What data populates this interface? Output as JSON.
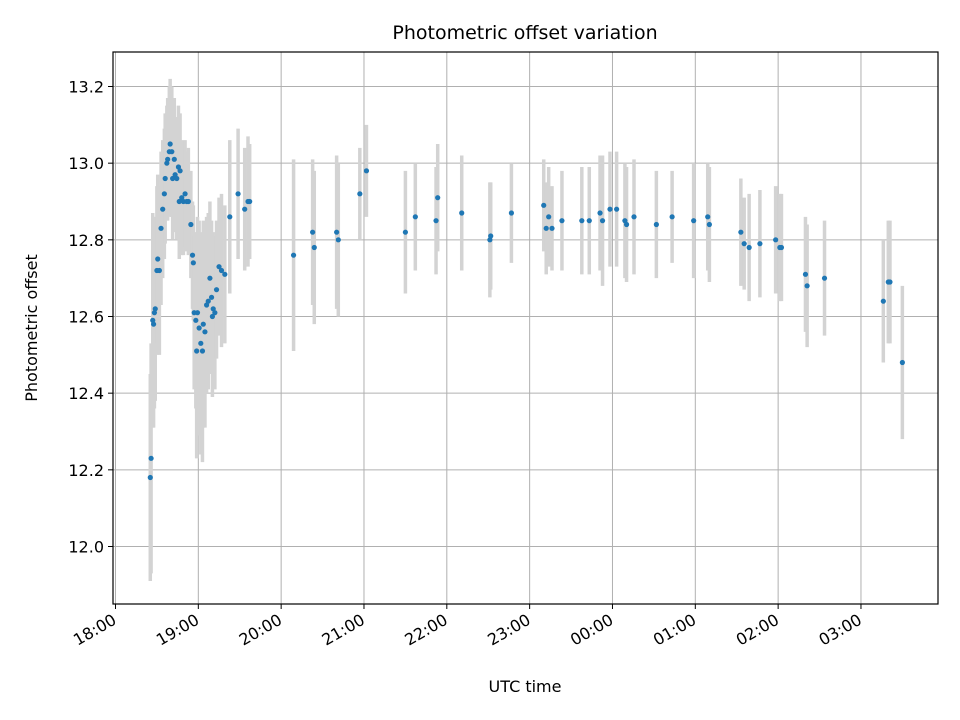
{
  "chart_data": {
    "type": "scatter",
    "title": "Photometric offset variation",
    "xlabel": "UTC time",
    "ylabel": "Photometric offset",
    "x_unit": "hours after 18:00 UTC",
    "x_tick_labels": [
      "18:00",
      "19:00",
      "20:00",
      "21:00",
      "22:00",
      "23:00",
      "00:00",
      "01:00",
      "02:00",
      "03:00"
    ],
    "y_ticks": [
      "12.0",
      "12.2",
      "12.4",
      "12.6",
      "12.8",
      "13.0",
      "13.2"
    ],
    "xlim": [
      -0.03,
      9.93
    ],
    "ylim": [
      11.85,
      13.29
    ],
    "grid": true,
    "marker_color": "#1f77b4",
    "errorbar_color": "#d3d3d3",
    "series": [
      {
        "points": [
          [
            0.42,
            12.18,
            0.27
          ],
          [
            0.43,
            12.23,
            0.3
          ],
          [
            0.45,
            12.59,
            0.28
          ],
          [
            0.46,
            12.58,
            0.27
          ],
          [
            0.47,
            12.61,
            0.25
          ],
          [
            0.48,
            12.62,
            0.24
          ],
          [
            0.5,
            12.72,
            0.22
          ],
          [
            0.51,
            12.75,
            0.22
          ],
          [
            0.53,
            12.72,
            0.22
          ],
          [
            0.55,
            12.83,
            0.2
          ],
          [
            0.57,
            12.88,
            0.18
          ],
          [
            0.59,
            12.92,
            0.17
          ],
          [
            0.6,
            12.96,
            0.17
          ],
          [
            0.62,
            13.0,
            0.15
          ],
          [
            0.63,
            13.01,
            0.16
          ],
          [
            0.65,
            13.03,
            0.17
          ],
          [
            0.66,
            13.05,
            0.17
          ],
          [
            0.68,
            13.03,
            0.17
          ],
          [
            0.69,
            12.96,
            0.16
          ],
          [
            0.71,
            13.01,
            0.16
          ],
          [
            0.72,
            12.97,
            0.15
          ],
          [
            0.74,
            12.96,
            0.16
          ],
          [
            0.76,
            12.99,
            0.16
          ],
          [
            0.77,
            12.9,
            0.15
          ],
          [
            0.78,
            12.98,
            0.15
          ],
          [
            0.8,
            12.91,
            0.15
          ],
          [
            0.82,
            12.9,
            0.14
          ],
          [
            0.84,
            12.92,
            0.14
          ],
          [
            0.86,
            12.9,
            0.13
          ],
          [
            0.88,
            12.9,
            0.14
          ],
          [
            0.91,
            12.84,
            0.14
          ],
          [
            0.93,
            12.76,
            0.14
          ],
          [
            0.94,
            12.74,
            0.15
          ],
          [
            0.95,
            12.61,
            0.2
          ],
          [
            0.97,
            12.59,
            0.23
          ],
          [
            0.98,
            12.51,
            0.28
          ],
          [
            0.99,
            12.61,
            0.25
          ],
          [
            1.01,
            12.57,
            0.28
          ],
          [
            1.03,
            12.53,
            0.29
          ],
          [
            1.05,
            12.51,
            0.29
          ],
          [
            1.06,
            12.58,
            0.27
          ],
          [
            1.08,
            12.56,
            0.25
          ],
          [
            1.1,
            12.63,
            0.23
          ],
          [
            1.12,
            12.64,
            0.23
          ],
          [
            1.14,
            12.7,
            0.2
          ],
          [
            1.16,
            12.65,
            0.2
          ],
          [
            1.17,
            12.6,
            0.21
          ],
          [
            1.18,
            12.62,
            0.2
          ],
          [
            1.2,
            12.61,
            0.2
          ],
          [
            1.22,
            12.67,
            0.18
          ],
          [
            1.25,
            12.73,
            0.18
          ],
          [
            1.28,
            12.72,
            0.2
          ],
          [
            1.32,
            12.71,
            0.18
          ],
          [
            1.38,
            12.86,
            0.2
          ],
          [
            1.48,
            12.92,
            0.17
          ],
          [
            1.56,
            12.88,
            0.16
          ],
          [
            1.6,
            12.9,
            0.17
          ],
          [
            1.62,
            12.9,
            0.15
          ],
          [
            2.15,
            12.76,
            0.25
          ],
          [
            2.38,
            12.82,
            0.19
          ],
          [
            2.4,
            12.78,
            0.2
          ],
          [
            2.67,
            12.82,
            0.2
          ],
          [
            2.69,
            12.8,
            0.2
          ],
          [
            2.95,
            12.92,
            0.12
          ],
          [
            3.03,
            12.98,
            0.12
          ],
          [
            3.5,
            12.82,
            0.16
          ],
          [
            3.62,
            12.86,
            0.14
          ],
          [
            3.87,
            12.85,
            0.14
          ],
          [
            3.89,
            12.91,
            0.14
          ],
          [
            4.18,
            12.87,
            0.15
          ],
          [
            4.52,
            12.8,
            0.15
          ],
          [
            4.53,
            12.81,
            0.14
          ],
          [
            4.78,
            12.87,
            0.13
          ],
          [
            5.17,
            12.89,
            0.12
          ],
          [
            5.2,
            12.83,
            0.12
          ],
          [
            5.23,
            12.86,
            0.13
          ],
          [
            5.27,
            12.83,
            0.11
          ],
          [
            5.39,
            12.85,
            0.13
          ],
          [
            5.63,
            12.85,
            0.14
          ],
          [
            5.72,
            12.85,
            0.14
          ],
          [
            5.85,
            12.87,
            0.15
          ],
          [
            5.88,
            12.85,
            0.17
          ],
          [
            5.97,
            12.88,
            0.15
          ],
          [
            6.05,
            12.88,
            0.15
          ],
          [
            6.15,
            12.85,
            0.15
          ],
          [
            6.17,
            12.84,
            0.15
          ],
          [
            6.26,
            12.86,
            0.15
          ],
          [
            6.53,
            12.84,
            0.14
          ],
          [
            6.72,
            12.86,
            0.12
          ],
          [
            6.98,
            12.85,
            0.15
          ],
          [
            7.15,
            12.86,
            0.14
          ],
          [
            7.17,
            12.84,
            0.15
          ],
          [
            7.55,
            12.82,
            0.14
          ],
          [
            7.59,
            12.79,
            0.12
          ],
          [
            7.65,
            12.78,
            0.14
          ],
          [
            7.78,
            12.79,
            0.14
          ],
          [
            7.97,
            12.8,
            0.14
          ],
          [
            8.02,
            12.78,
            0.14
          ],
          [
            8.04,
            12.78,
            0.14
          ],
          [
            8.33,
            12.71,
            0.15
          ],
          [
            8.35,
            12.68,
            0.16
          ],
          [
            8.56,
            12.7,
            0.15
          ],
          [
            9.27,
            12.64,
            0.16
          ],
          [
            9.33,
            12.69,
            0.16
          ],
          [
            9.35,
            12.69,
            0.16
          ],
          [
            9.5,
            12.48,
            0.2
          ]
        ]
      }
    ]
  }
}
